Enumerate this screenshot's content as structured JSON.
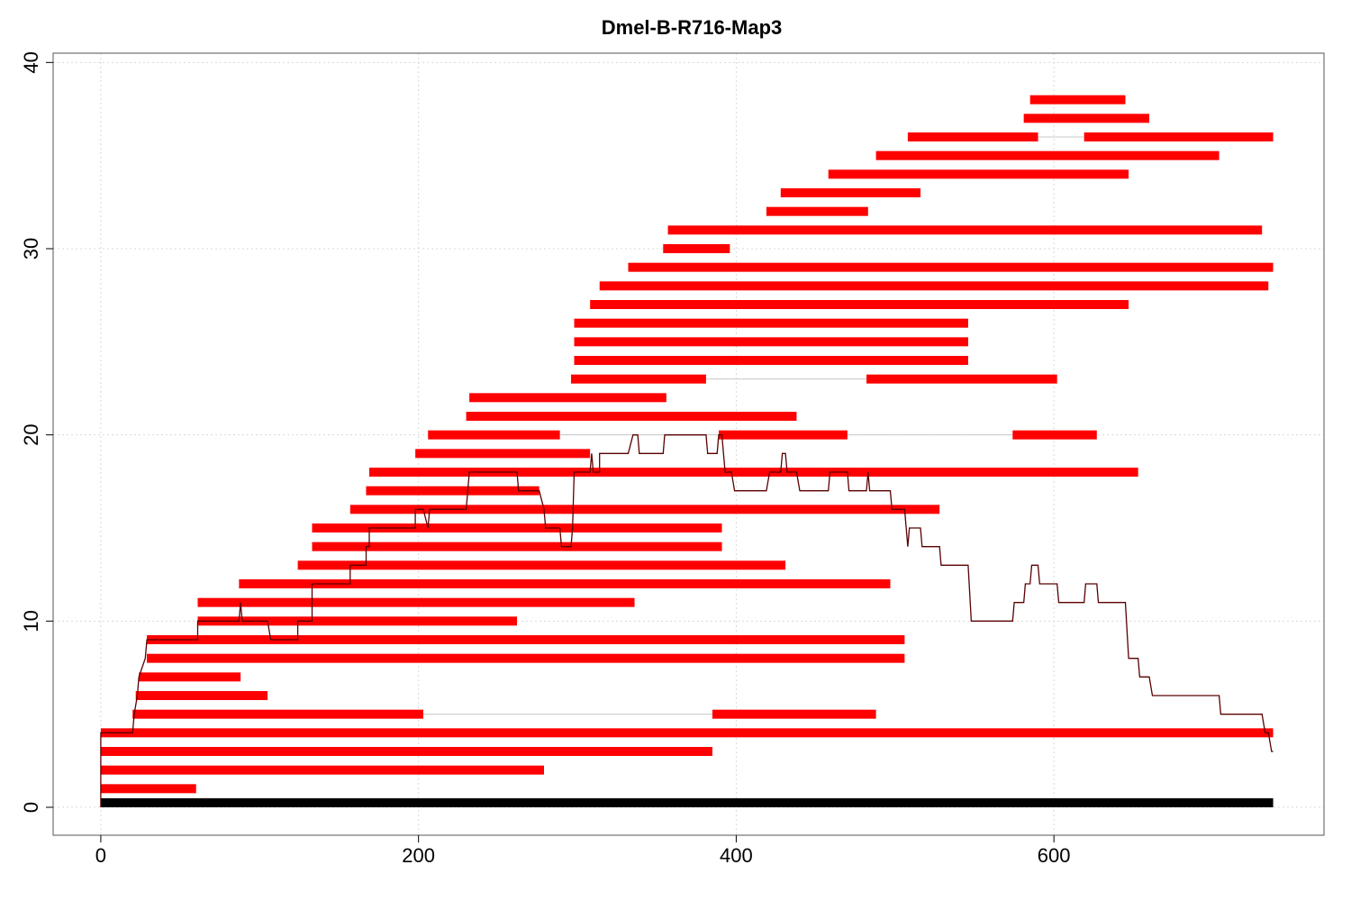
{
  "chart_data": {
    "type": "range-bar",
    "title": "Dmel-B-R716-Map3",
    "xlabel": "",
    "ylabel": "",
    "xlim": [
      -30,
      770
    ],
    "ylim": [
      -1.5,
      40.5
    ],
    "x_ticks": [
      0,
      200,
      400,
      600
    ],
    "y_ticks": [
      0,
      10,
      20,
      30,
      40
    ],
    "grid": true,
    "colors": {
      "segment": "#ff0000",
      "gap_line": "#c8c8c8",
      "reference": "#000000",
      "coverage": "#5a0000",
      "grid": "#d9d9d9",
      "frame": "#555555"
    },
    "reference": {
      "y": 0,
      "start": 0,
      "end": 738
    },
    "reads": [
      {
        "y": 1,
        "segments": [
          [
            0,
            60
          ]
        ]
      },
      {
        "y": 2,
        "segments": [
          [
            0,
            279
          ]
        ]
      },
      {
        "y": 3,
        "segments": [
          [
            0,
            385
          ]
        ]
      },
      {
        "y": 4,
        "segments": [
          [
            0,
            738
          ]
        ]
      },
      {
        "y": 5,
        "segments": [
          [
            20,
            203
          ],
          [
            385,
            488
          ]
        ]
      },
      {
        "y": 6,
        "segments": [
          [
            22,
            105
          ]
        ]
      },
      {
        "y": 7,
        "segments": [
          [
            24,
            88
          ]
        ]
      },
      {
        "y": 8,
        "segments": [
          [
            29,
            506
          ]
        ]
      },
      {
        "y": 9,
        "segments": [
          [
            29,
            506
          ]
        ]
      },
      {
        "y": 10,
        "segments": [
          [
            61,
            262
          ]
        ]
      },
      {
        "y": 11,
        "segments": [
          [
            61,
            336
          ]
        ]
      },
      {
        "y": 12,
        "segments": [
          [
            87,
            497
          ]
        ]
      },
      {
        "y": 13,
        "segments": [
          [
            124,
            431
          ]
        ]
      },
      {
        "y": 14,
        "segments": [
          [
            133,
            391
          ]
        ]
      },
      {
        "y": 15,
        "segments": [
          [
            133,
            391
          ]
        ]
      },
      {
        "y": 16,
        "segments": [
          [
            157,
            528
          ]
        ]
      },
      {
        "y": 17,
        "segments": [
          [
            167,
            276
          ]
        ]
      },
      {
        "y": 18,
        "segments": [
          [
            169,
            653
          ]
        ]
      },
      {
        "y": 19,
        "segments": [
          [
            198,
            308
          ]
        ]
      },
      {
        "y": 20,
        "segments": [
          [
            206,
            289
          ],
          [
            389,
            470
          ],
          [
            574,
            627
          ]
        ]
      },
      {
        "y": 21,
        "segments": [
          [
            230,
            438
          ]
        ]
      },
      {
        "y": 22,
        "segments": [
          [
            232,
            356
          ]
        ]
      },
      {
        "y": 23,
        "segments": [
          [
            296,
            381
          ],
          [
            482,
            602
          ]
        ]
      },
      {
        "y": 24,
        "segments": [
          [
            298,
            546
          ]
        ]
      },
      {
        "y": 25,
        "segments": [
          [
            298,
            546
          ]
        ]
      },
      {
        "y": 26,
        "segments": [
          [
            298,
            546
          ]
        ]
      },
      {
        "y": 27,
        "segments": [
          [
            308,
            647
          ]
        ]
      },
      {
        "y": 28,
        "segments": [
          [
            314,
            735
          ]
        ]
      },
      {
        "y": 29,
        "segments": [
          [
            332,
            738
          ]
        ]
      },
      {
        "y": 30,
        "segments": [
          [
            354,
            396
          ]
        ]
      },
      {
        "y": 31,
        "segments": [
          [
            357,
            731
          ]
        ]
      },
      {
        "y": 32,
        "segments": [
          [
            419,
            483
          ]
        ]
      },
      {
        "y": 33,
        "segments": [
          [
            428,
            516
          ]
        ]
      },
      {
        "y": 34,
        "segments": [
          [
            458,
            647
          ]
        ]
      },
      {
        "y": 35,
        "segments": [
          [
            488,
            704
          ]
        ]
      },
      {
        "y": 36,
        "segments": [
          [
            508,
            590
          ],
          [
            619,
            738
          ]
        ]
      },
      {
        "y": 37,
        "segments": [
          [
            581,
            660
          ]
        ]
      },
      {
        "y": 38,
        "segments": [
          [
            585,
            645
          ]
        ]
      }
    ],
    "coverage": [
      [
        0,
        0
      ],
      [
        0,
        4
      ],
      [
        20,
        4
      ],
      [
        21,
        5
      ],
      [
        23,
        6
      ],
      [
        24,
        7
      ],
      [
        28,
        8
      ],
      [
        29,
        9
      ],
      [
        61,
        9
      ],
      [
        61,
        10
      ],
      [
        87,
        10
      ],
      [
        88,
        11
      ],
      [
        89,
        10
      ],
      [
        105,
        10
      ],
      [
        107,
        9
      ],
      [
        124,
        9
      ],
      [
        124,
        10
      ],
      [
        133,
        10
      ],
      [
        133,
        12
      ],
      [
        157,
        12
      ],
      [
        157,
        13
      ],
      [
        167,
        13
      ],
      [
        167,
        14
      ],
      [
        169,
        14
      ],
      [
        169,
        15
      ],
      [
        198,
        15
      ],
      [
        198,
        16
      ],
      [
        203,
        16
      ],
      [
        206,
        15
      ],
      [
        207,
        16
      ],
      [
        230,
        16
      ],
      [
        232,
        18
      ],
      [
        262,
        18
      ],
      [
        263,
        17
      ],
      [
        276,
        17
      ],
      [
        279,
        16
      ],
      [
        280,
        15
      ],
      [
        289,
        15
      ],
      [
        290,
        14
      ],
      [
        296,
        14
      ],
      [
        297,
        15
      ],
      [
        298,
        18
      ],
      [
        308,
        18
      ],
      [
        309,
        19
      ],
      [
        310,
        18
      ],
      [
        314,
        18
      ],
      [
        314,
        19
      ],
      [
        332,
        19
      ],
      [
        335,
        20
      ],
      [
        338,
        20
      ],
      [
        339,
        19
      ],
      [
        354,
        19
      ],
      [
        355,
        20
      ],
      [
        381,
        20
      ],
      [
        382,
        19
      ],
      [
        388,
        19
      ],
      [
        389,
        20
      ],
      [
        391,
        20
      ],
      [
        393,
        18
      ],
      [
        397,
        18
      ],
      [
        399,
        17
      ],
      [
        419,
        17
      ],
      [
        421,
        18
      ],
      [
        428,
        18
      ],
      [
        429,
        19
      ],
      [
        431,
        19
      ],
      [
        432,
        18
      ],
      [
        438,
        18
      ],
      [
        440,
        17
      ],
      [
        458,
        17
      ],
      [
        459,
        18
      ],
      [
        470,
        18
      ],
      [
        471,
        17
      ],
      [
        482,
        17
      ],
      [
        483,
        18
      ],
      [
        484,
        17
      ],
      [
        497,
        17
      ],
      [
        498,
        16
      ],
      [
        506,
        16
      ],
      [
        508,
        14
      ],
      [
        509,
        15
      ],
      [
        516,
        15
      ],
      [
        517,
        14
      ],
      [
        528,
        14
      ],
      [
        529,
        13
      ],
      [
        546,
        13
      ],
      [
        548,
        10
      ],
      [
        574,
        10
      ],
      [
        575,
        11
      ],
      [
        581,
        11
      ],
      [
        582,
        12
      ],
      [
        585,
        12
      ],
      [
        586,
        13
      ],
      [
        590,
        13
      ],
      [
        591,
        12
      ],
      [
        602,
        12
      ],
      [
        603,
        11
      ],
      [
        619,
        11
      ],
      [
        620,
        12
      ],
      [
        627,
        12
      ],
      [
        628,
        11
      ],
      [
        645,
        11
      ],
      [
        647,
        8
      ],
      [
        653,
        8
      ],
      [
        654,
        7
      ],
      [
        660,
        7
      ],
      [
        662,
        6
      ],
      [
        704,
        6
      ],
      [
        705,
        5
      ],
      [
        731,
        5
      ],
      [
        733,
        4
      ],
      [
        735,
        4
      ],
      [
        737,
        3
      ],
      [
        738,
        3
      ]
    ]
  }
}
